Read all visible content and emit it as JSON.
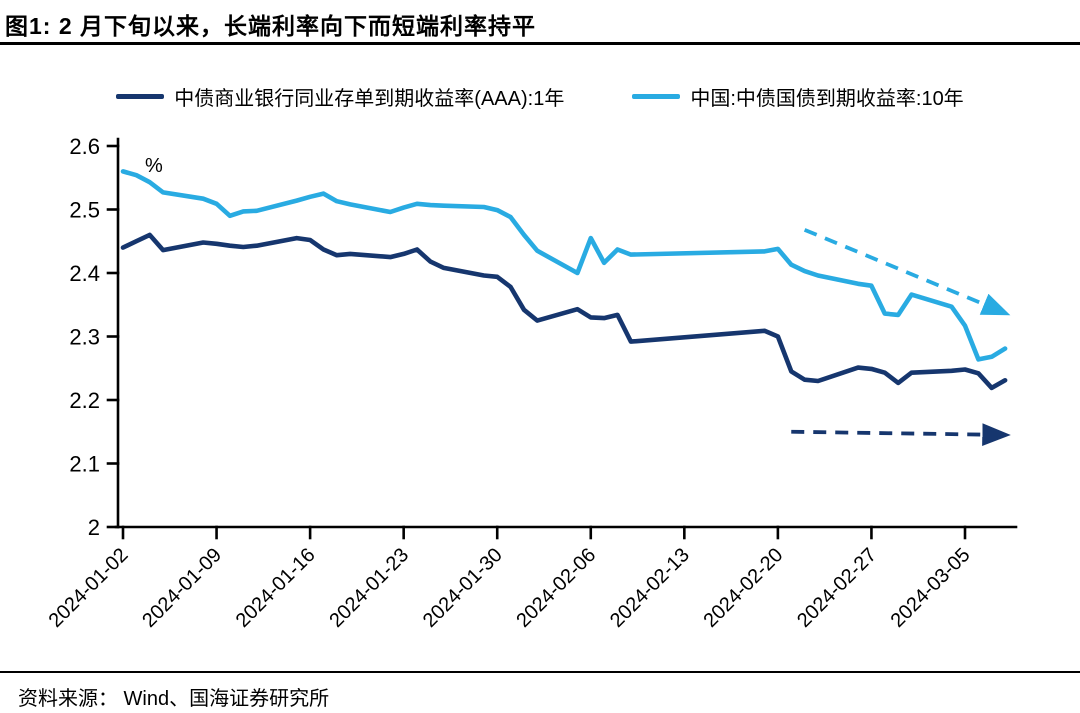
{
  "title": "图1:  2 月下旬以来，长端利率向下而短端利率持平",
  "source": "资料来源：  Wind、国海证券研究所",
  "chart_data": {
    "type": "line",
    "title": "",
    "unit": "%",
    "xlabel": "",
    "ylabel": "",
    "ylim": [
      2.0,
      2.6
    ],
    "ytick_values": [
      2.0,
      2.1,
      2.2,
      2.3,
      2.4,
      2.5,
      2.6
    ],
    "ytick_labels": [
      "2",
      "2.1",
      "2.2",
      "2.3",
      "2.4",
      "2.5",
      "2.6"
    ],
    "xticks": [
      "2024-01-02",
      "2024-01-09",
      "2024-01-16",
      "2024-01-23",
      "2024-01-30",
      "2024-02-06",
      "2024-02-13",
      "2024-02-20",
      "2024-02-27",
      "2024-03-05"
    ],
    "x_end": "2024-03-08",
    "grid": false,
    "legend_position": "top-center",
    "series": [
      {
        "name": "中债商业银行同业存单到期收益率(AAA):1年",
        "color": "#16366E",
        "points": [
          [
            "2024-01-02",
            2.44
          ],
          [
            "2024-01-03",
            2.45
          ],
          [
            "2024-01-04",
            2.46
          ],
          [
            "2024-01-05",
            2.436
          ],
          [
            "2024-01-08",
            2.448
          ],
          [
            "2024-01-09",
            2.446
          ],
          [
            "2024-01-10",
            2.443
          ],
          [
            "2024-01-11",
            2.441
          ],
          [
            "2024-01-12",
            2.443
          ],
          [
            "2024-01-15",
            2.455
          ],
          [
            "2024-01-16",
            2.452
          ],
          [
            "2024-01-17",
            2.437
          ],
          [
            "2024-01-18",
            2.428
          ],
          [
            "2024-01-19",
            2.43
          ],
          [
            "2024-01-22",
            2.425
          ],
          [
            "2024-01-23",
            2.43
          ],
          [
            "2024-01-24",
            2.437
          ],
          [
            "2024-01-25",
            2.418
          ],
          [
            "2024-01-26",
            2.408
          ],
          [
            "2024-01-29",
            2.396
          ],
          [
            "2024-01-30",
            2.394
          ],
          [
            "2024-01-31",
            2.378
          ],
          [
            "2024-02-01",
            2.342
          ],
          [
            "2024-02-02",
            2.325
          ],
          [
            "2024-02-05",
            2.343
          ],
          [
            "2024-02-06",
            2.33
          ],
          [
            "2024-02-07",
            2.329
          ],
          [
            "2024-02-08",
            2.334
          ],
          [
            "2024-02-09",
            2.292
          ],
          [
            "2024-02-19",
            2.309
          ],
          [
            "2024-02-20",
            2.3
          ],
          [
            "2024-02-21",
            2.245
          ],
          [
            "2024-02-22",
            2.232
          ],
          [
            "2024-02-23",
            2.23
          ],
          [
            "2024-02-26",
            2.251
          ],
          [
            "2024-02-27",
            2.249
          ],
          [
            "2024-02-28",
            2.243
          ],
          [
            "2024-02-29",
            2.227
          ],
          [
            "2024-03-01",
            2.243
          ],
          [
            "2024-03-04",
            2.246
          ],
          [
            "2024-03-05",
            2.248
          ],
          [
            "2024-03-06",
            2.242
          ],
          [
            "2024-03-07",
            2.219
          ],
          [
            "2024-03-08",
            2.231
          ]
        ]
      },
      {
        "name": "中国:中债国债到期收益率:10年",
        "color": "#29ABE2",
        "points": [
          [
            "2024-01-02",
            2.56
          ],
          [
            "2024-01-03",
            2.554
          ],
          [
            "2024-01-04",
            2.543
          ],
          [
            "2024-01-05",
            2.527
          ],
          [
            "2024-01-08",
            2.517
          ],
          [
            "2024-01-09",
            2.509
          ],
          [
            "2024-01-10",
            2.49
          ],
          [
            "2024-01-11",
            2.497
          ],
          [
            "2024-01-12",
            2.498
          ],
          [
            "2024-01-15",
            2.514
          ],
          [
            "2024-01-16",
            2.52
          ],
          [
            "2024-01-17",
            2.525
          ],
          [
            "2024-01-18",
            2.513
          ],
          [
            "2024-01-19",
            2.508
          ],
          [
            "2024-01-22",
            2.496
          ],
          [
            "2024-01-23",
            2.503
          ],
          [
            "2024-01-24",
            2.509
          ],
          [
            "2024-01-25",
            2.507
          ],
          [
            "2024-01-26",
            2.506
          ],
          [
            "2024-01-29",
            2.504
          ],
          [
            "2024-01-30",
            2.499
          ],
          [
            "2024-01-31",
            2.488
          ],
          [
            "2024-02-01",
            2.46
          ],
          [
            "2024-02-02",
            2.435
          ],
          [
            "2024-02-05",
            2.4
          ],
          [
            "2024-02-06",
            2.455
          ],
          [
            "2024-02-07",
            2.416
          ],
          [
            "2024-02-08",
            2.437
          ],
          [
            "2024-02-09",
            2.429
          ],
          [
            "2024-02-19",
            2.434
          ],
          [
            "2024-02-20",
            2.438
          ],
          [
            "2024-02-21",
            2.413
          ],
          [
            "2024-02-22",
            2.403
          ],
          [
            "2024-02-23",
            2.396
          ],
          [
            "2024-02-26",
            2.383
          ],
          [
            "2024-02-27",
            2.38
          ],
          [
            "2024-02-28",
            2.336
          ],
          [
            "2024-02-29",
            2.334
          ],
          [
            "2024-03-01",
            2.366
          ],
          [
            "2024-03-04",
            2.347
          ],
          [
            "2024-03-05",
            2.317
          ],
          [
            "2024-03-06",
            2.264
          ],
          [
            "2024-03-07",
            2.268
          ],
          [
            "2024-03-08",
            2.281
          ]
        ]
      }
    ],
    "annotations": [
      {
        "type": "dashed-arrow",
        "name": "long-end-down-trend",
        "color": "#29ABE2",
        "from": [
          "2024-02-22",
          2.468
        ],
        "to": [
          "2024-03-08",
          2.337
        ]
      },
      {
        "type": "dashed-arrow",
        "name": "short-end-flat-trend",
        "color": "#16366E",
        "from": [
          "2024-02-21",
          2.15
        ],
        "to": [
          "2024-03-08",
          2.145
        ]
      }
    ]
  }
}
